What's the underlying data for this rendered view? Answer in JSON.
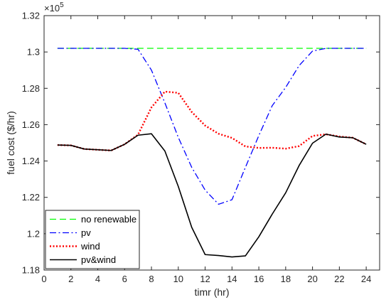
{
  "chart_data": {
    "type": "line",
    "xlabel": "timr (hr)",
    "ylabel": "fuel cost ($/hr)",
    "y_scale_factor_label": "×10",
    "y_scale_factor_exponent": "5",
    "xlim": [
      0,
      25
    ],
    "ylim": [
      1.18,
      1.32
    ],
    "xticks": [
      0,
      2,
      4,
      6,
      8,
      10,
      12,
      14,
      16,
      18,
      20,
      22,
      24
    ],
    "yticks": [
      1.18,
      1.2,
      1.22,
      1.24,
      1.26,
      1.28,
      1.3,
      1.32
    ],
    "ytick_labels": [
      "1.18",
      "1.2",
      "1.22",
      "1.24",
      "1.26",
      "1.28",
      "1.3",
      "1.32"
    ],
    "grid": false,
    "legend_position": "bottom-left",
    "x": [
      1,
      2,
      3,
      4,
      5,
      6,
      7,
      8,
      9,
      10,
      11,
      12,
      13,
      14,
      15,
      16,
      17,
      18,
      19,
      20,
      21,
      22,
      23,
      24
    ],
    "series": [
      {
        "name": "no renewable",
        "color": "#00ff00",
        "dash": "dashed",
        "values": [
          1.302,
          1.302,
          1.302,
          1.302,
          1.302,
          1.302,
          1.302,
          1.302,
          1.302,
          1.302,
          1.302,
          1.302,
          1.302,
          1.302,
          1.302,
          1.302,
          1.302,
          1.302,
          1.302,
          1.302,
          1.302,
          1.302,
          1.302,
          1.302
        ]
      },
      {
        "name": "pv",
        "color": "#0000ff",
        "dash": "dashdot",
        "values": [
          1.302,
          1.302,
          1.302,
          1.302,
          1.302,
          1.302,
          1.3015,
          1.29,
          1.272,
          1.253,
          1.2365,
          1.224,
          1.2162,
          1.2187,
          1.2365,
          1.254,
          1.2705,
          1.2805,
          1.2925,
          1.3005,
          1.302,
          1.302,
          1.302,
          1.302
        ]
      },
      {
        "name": "wind",
        "color": "#ff0000",
        "dash": "dotted",
        "values": [
          1.2488,
          1.2486,
          1.2466,
          1.2462,
          1.2458,
          1.2492,
          1.2545,
          1.2695,
          1.2782,
          1.2775,
          1.267,
          1.2595,
          1.255,
          1.2527,
          1.248,
          1.2472,
          1.2473,
          1.2468,
          1.2482,
          1.2538,
          1.2547,
          1.2535,
          1.2528,
          1.2492
        ]
      },
      {
        "name": "pv&wind",
        "color": "#000000",
        "dash": "solid",
        "values": [
          1.2488,
          1.2486,
          1.2466,
          1.2462,
          1.2458,
          1.2492,
          1.2542,
          1.255,
          1.2455,
          1.226,
          1.2035,
          1.1885,
          1.188,
          1.1872,
          1.1878,
          1.1983,
          1.2108,
          1.2225,
          1.2375,
          1.2498,
          1.2548,
          1.2532,
          1.2528,
          1.2492
        ]
      }
    ]
  }
}
